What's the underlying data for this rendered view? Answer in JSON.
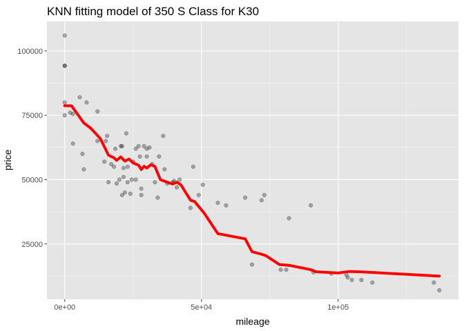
{
  "chart_data": {
    "type": "scatter",
    "title": "KNN fitting model of 350 S Class for K30",
    "xlabel": "mileage",
    "ylabel": "price",
    "xlim": [
      -6500,
      144000
    ],
    "ylim": [
      3500,
      111500
    ],
    "x_ticks": [
      {
        "value": 0,
        "label": "0e+00"
      },
      {
        "value": 50000,
        "label": "5e+04"
      },
      {
        "value": 100000,
        "label": "1e+05"
      }
    ],
    "y_ticks": [
      {
        "value": 25000,
        "label": "25000"
      },
      {
        "value": 50000,
        "label": "50000"
      },
      {
        "value": 75000,
        "label": "75000"
      },
      {
        "value": 100000,
        "label": "100000"
      }
    ],
    "grid": true,
    "background": "#e5e5e5",
    "point_color": "#000000",
    "point_opacity": 0.3,
    "fit_color": "#ff0000",
    "points": [
      [
        0,
        106000
      ],
      [
        0,
        94300
      ],
      [
        0,
        94200
      ],
      [
        0,
        80000
      ],
      [
        0,
        75000
      ],
      [
        2000,
        76000
      ],
      [
        3000,
        75500
      ],
      [
        3000,
        64000
      ],
      [
        5500,
        82000
      ],
      [
        6500,
        60000
      ],
      [
        7000,
        54000
      ],
      [
        8000,
        80000
      ],
      [
        12000,
        76500
      ],
      [
        12000,
        65000
      ],
      [
        14500,
        57000
      ],
      [
        15000,
        65000
      ],
      [
        15500,
        67000
      ],
      [
        16000,
        49000
      ],
      [
        17000,
        56000
      ],
      [
        18000,
        55000
      ],
      [
        18500,
        62000
      ],
      [
        19000,
        48500
      ],
      [
        20000,
        50000
      ],
      [
        20500,
        63000
      ],
      [
        21000,
        63000
      ],
      [
        21000,
        44000
      ],
      [
        21500,
        54500
      ],
      [
        21500,
        51000
      ],
      [
        22000,
        45000
      ],
      [
        22500,
        68000
      ],
      [
        23000,
        55000
      ],
      [
        23000,
        49000
      ],
      [
        24000,
        44500
      ],
      [
        24500,
        50000
      ],
      [
        25000,
        57000
      ],
      [
        26000,
        50000
      ],
      [
        26000,
        62000
      ],
      [
        27000,
        63000
      ],
      [
        27500,
        59000
      ],
      [
        28000,
        44000
      ],
      [
        28000,
        46500
      ],
      [
        29000,
        63000
      ],
      [
        30000,
        59000
      ],
      [
        30000,
        62000
      ],
      [
        31000,
        62500
      ],
      [
        32000,
        56000
      ],
      [
        33000,
        49000
      ],
      [
        34000,
        43000
      ],
      [
        34500,
        59000
      ],
      [
        36000,
        67000
      ],
      [
        36500,
        54000
      ],
      [
        37500,
        48500
      ],
      [
        39500,
        49000
      ],
      [
        40000,
        49500
      ],
      [
        41000,
        47000
      ],
      [
        42000,
        50000
      ],
      [
        46000,
        39000
      ],
      [
        47000,
        55000
      ],
      [
        49000,
        44000
      ],
      [
        50500,
        48000
      ],
      [
        56000,
        41000
      ],
      [
        59000,
        40000
      ],
      [
        66000,
        43000
      ],
      [
        68500,
        17000
      ],
      [
        72000,
        42000
      ],
      [
        73000,
        44000
      ],
      [
        79000,
        15000
      ],
      [
        81000,
        15000
      ],
      [
        82000,
        35000
      ],
      [
        90000,
        40000
      ],
      [
        91000,
        14000
      ],
      [
        97500,
        13500
      ],
      [
        103000,
        13000
      ],
      [
        103500,
        12000
      ],
      [
        105000,
        11000
      ],
      [
        108500,
        11000
      ],
      [
        112500,
        10000
      ],
      [
        135000,
        10000
      ],
      [
        137000,
        7000
      ]
    ],
    "series": [
      {
        "values": [
          [
            0,
            78700
          ],
          [
            2500,
            78700
          ],
          [
            7000,
            72000
          ],
          [
            9500,
            70000
          ],
          [
            13000,
            66000
          ],
          [
            16000,
            59500
          ],
          [
            18000,
            58500
          ],
          [
            19000,
            57500
          ],
          [
            20500,
            58800
          ],
          [
            22000,
            57200
          ],
          [
            23500,
            58000
          ],
          [
            25000,
            56500
          ],
          [
            27000,
            55600
          ],
          [
            28000,
            53900
          ],
          [
            29000,
            55200
          ],
          [
            30000,
            54500
          ],
          [
            31500,
            55800
          ],
          [
            33000,
            55100
          ],
          [
            35000,
            50000
          ],
          [
            37500,
            49000
          ],
          [
            39500,
            48300
          ],
          [
            41000,
            49000
          ],
          [
            42500,
            48000
          ],
          [
            46000,
            42000
          ],
          [
            47500,
            41500
          ],
          [
            51000,
            37000
          ],
          [
            56000,
            29000
          ],
          [
            66000,
            27000
          ],
          [
            68500,
            22000
          ],
          [
            72000,
            21000
          ],
          [
            73500,
            20500
          ],
          [
            78500,
            17000
          ],
          [
            82000,
            16700
          ],
          [
            90000,
            15000
          ],
          [
            92000,
            14200
          ],
          [
            100000,
            13700
          ],
          [
            104000,
            14300
          ],
          [
            108000,
            14200
          ],
          [
            137000,
            12500
          ]
        ]
      }
    ]
  }
}
